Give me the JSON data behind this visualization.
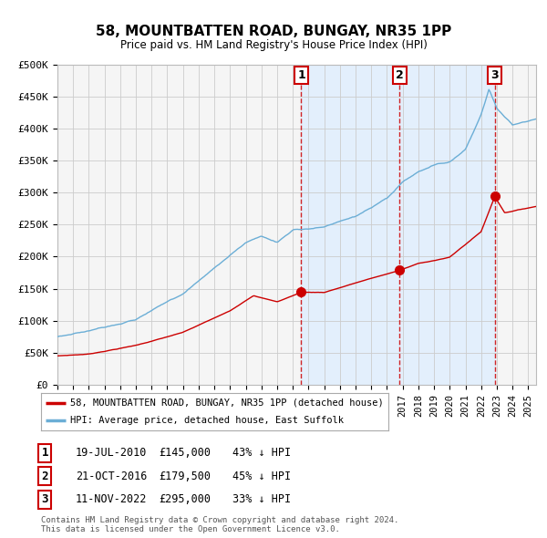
{
  "title": "58, MOUNTBATTEN ROAD, BUNGAY, NR35 1PP",
  "subtitle": "Price paid vs. HM Land Registry's House Price Index (HPI)",
  "ylabel_ticks": [
    "£0",
    "£50K",
    "£100K",
    "£150K",
    "£200K",
    "£250K",
    "£300K",
    "£350K",
    "£400K",
    "£450K",
    "£500K"
  ],
  "ytick_values": [
    0,
    50000,
    100000,
    150000,
    200000,
    250000,
    300000,
    350000,
    400000,
    450000,
    500000
  ],
  "xlim_start": 1995.0,
  "xlim_end": 2025.5,
  "ylim": [
    0,
    500000
  ],
  "hpi_color": "#6baed6",
  "price_color": "#cc0000",
  "sale_marker_color": "#cc0000",
  "dashed_line_color": "#cc0000",
  "shade_color": "#ddeeff",
  "sales": [
    {
      "date_num": 2010.54,
      "price": 145000,
      "label": "1"
    },
    {
      "date_num": 2016.81,
      "price": 179500,
      "label": "2"
    },
    {
      "date_num": 2022.87,
      "price": 295000,
      "label": "3"
    }
  ],
  "sale_table": [
    {
      "num": "1",
      "date": "19-JUL-2010",
      "price": "£145,000",
      "hpi": "43% ↓ HPI"
    },
    {
      "num": "2",
      "date": "21-OCT-2016",
      "price": "£179,500",
      "hpi": "45% ↓ HPI"
    },
    {
      "num": "3",
      "date": "11-NOV-2022",
      "price": "£295,000",
      "hpi": "33% ↓ HPI"
    }
  ],
  "legend_label_red": "58, MOUNTBATTEN ROAD, BUNGAY, NR35 1PP (detached house)",
  "legend_label_blue": "HPI: Average price, detached house, East Suffolk",
  "footer": "Contains HM Land Registry data © Crown copyright and database right 2024.\nThis data is licensed under the Open Government Licence v3.0.",
  "bg_color": "#ffffff",
  "plot_bg_color": "#f5f5f5",
  "red_anchors_t": [
    1995,
    1997,
    2000,
    2003,
    2006,
    2007.5,
    2009,
    2010.54,
    2012,
    2014,
    2016.81,
    2018,
    2020,
    2022.0,
    2022.87,
    2023.5,
    2025.5
  ],
  "red_anchors_v": [
    45000,
    48000,
    62000,
    82000,
    115000,
    140000,
    130000,
    145000,
    145000,
    160000,
    179500,
    190000,
    200000,
    240000,
    295000,
    270000,
    280000
  ],
  "hpi_anchors_t": [
    1995,
    1997,
    2000,
    2003,
    2005,
    2007,
    2008,
    2009,
    2010,
    2012,
    2014,
    2016,
    2017,
    2018,
    2019,
    2020,
    2021,
    2022.0,
    2022.5,
    2023,
    2024,
    2025.5
  ],
  "hpi_anchors_v": [
    75000,
    85000,
    105000,
    145000,
    185000,
    225000,
    235000,
    225000,
    245000,
    250000,
    265000,
    290000,
    315000,
    330000,
    340000,
    345000,
    365000,
    420000,
    460000,
    430000,
    405000,
    415000
  ]
}
